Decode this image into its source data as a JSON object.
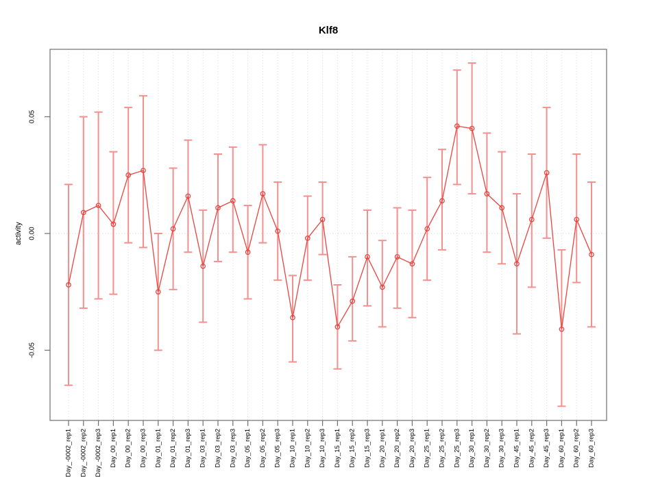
{
  "chart_data": {
    "type": "line",
    "title": "Klf8",
    "ylabel": "activity",
    "xlabel": "",
    "legend": "none",
    "grid": "vertical dotted gridline at each x position; dotted horizontal line at y=0",
    "ylim": [
      -0.08,
      0.079
    ],
    "yticks": [
      0.05,
      0.0,
      -0.05
    ],
    "ytick_labels": [
      "0.05",
      "0.00",
      "-0.05"
    ],
    "categories": [
      "Day_-0002_rep1",
      "Day_-0002_rep2",
      "Day_-0002_rep3",
      "Day_00_rep1",
      "Day_00_rep2",
      "Day_00_rep3",
      "Day_01_rep1",
      "Day_01_rep2",
      "Day_01_rep3",
      "Day_03_rep1",
      "Day_03_rep2",
      "Day_03_rep3",
      "Day_05_rep1",
      "Day_05_rep2",
      "Day_05_rep3",
      "Day_10_rep1",
      "Day_10_rep2",
      "Day_10_rep3",
      "Day_15_rep1",
      "Day_15_rep2",
      "Day_15_rep3",
      "Day_20_rep1",
      "Day_20_rep2",
      "Day_20_rep3",
      "Day_25_rep1",
      "Day_25_rep2",
      "Day_25_rep3",
      "Day_30_rep1",
      "Day_30_rep2",
      "Day_30_rep3",
      "Day_45_rep1",
      "Day_45_rep2",
      "Day_45_rep3",
      "Day_60_rep1",
      "Day_60_rep2",
      "Day_60_rep3"
    ],
    "series": [
      {
        "name": "activity",
        "values": [
          -0.022,
          0.009,
          0.012,
          0.004,
          0.025,
          0.027,
          -0.025,
          0.002,
          0.016,
          -0.014,
          0.011,
          0.014,
          -0.008,
          0.017,
          0.001,
          -0.036,
          -0.002,
          0.006,
          -0.04,
          -0.029,
          -0.01,
          -0.023,
          -0.01,
          -0.013,
          0.002,
          0.014,
          0.046,
          0.045,
          0.017,
          0.011,
          -0.013,
          0.006,
          0.026,
          -0.041,
          0.006,
          -0.009
        ],
        "err_hi": [
          0.021,
          0.05,
          0.052,
          0.035,
          0.054,
          0.059,
          0.0,
          0.028,
          0.04,
          0.01,
          0.034,
          0.037,
          0.012,
          0.038,
          0.022,
          -0.018,
          0.016,
          0.022,
          -0.022,
          -0.01,
          0.01,
          -0.003,
          0.011,
          0.01,
          0.024,
          0.036,
          0.07,
          0.073,
          0.043,
          0.035,
          0.017,
          0.034,
          0.054,
          -0.007,
          0.034,
          0.022
        ],
        "err_lo": [
          -0.065,
          -0.032,
          -0.028,
          -0.026,
          -0.004,
          -0.006,
          -0.05,
          -0.024,
          -0.008,
          -0.038,
          -0.012,
          -0.008,
          -0.028,
          -0.004,
          -0.02,
          -0.055,
          -0.02,
          -0.009,
          -0.058,
          -0.046,
          -0.031,
          -0.04,
          -0.032,
          -0.036,
          -0.02,
          -0.007,
          0.021,
          0.017,
          -0.008,
          -0.013,
          -0.043,
          -0.023,
          -0.002,
          -0.074,
          -0.021,
          -0.04
        ]
      }
    ],
    "colors": {
      "point_line": "#ea433e",
      "error_bar": "#f3908e",
      "grid": "#d8d8d8",
      "axis": "#6e6e6e",
      "text": "#000000",
      "background": "#ffffff"
    }
  }
}
